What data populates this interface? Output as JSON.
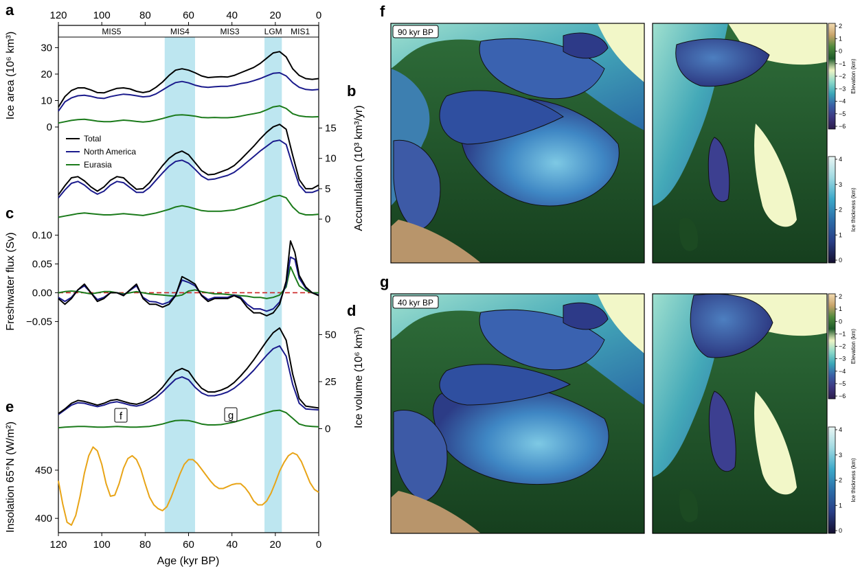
{
  "panel_letters": {
    "a": "a",
    "b": "b",
    "c": "c",
    "d": "d",
    "e": "e",
    "f": "f",
    "g": "g"
  },
  "top_axis": {
    "ticks": [
      "120",
      "100",
      "80",
      "60",
      "40",
      "20",
      "0"
    ]
  },
  "bottom_axis": {
    "ticks": [
      "120",
      "100",
      "80",
      "60",
      "40",
      "20",
      "0"
    ],
    "label": "Age (kyr BP)"
  },
  "stages": [
    {
      "label": "MIS5",
      "from": 130,
      "to": 71,
      "shaded": false
    },
    {
      "label": "MIS4",
      "from": 71,
      "to": 57,
      "shaded": true
    },
    {
      "label": "MIS3",
      "from": 57,
      "to": 25,
      "shaded": false
    },
    {
      "label": "LGM",
      "from": 25,
      "to": 17,
      "shaded": true
    },
    {
      "label": "MIS1",
      "from": 17,
      "to": 0,
      "shaded": false
    }
  ],
  "legend": [
    {
      "label": "Total",
      "color": "#000000"
    },
    {
      "label": "North America",
      "color": "#1a1a8c"
    },
    {
      "label": "Eurasia",
      "color": "#1a7a1a"
    }
  ],
  "insolation_color": "#e8a416",
  "zero_line_color": "#cc2222",
  "shade_color": "#bde6f0",
  "axes": {
    "a": {
      "ylabel": "Ice area (10⁶ km³)",
      "ticks": [
        "30",
        "20",
        "10",
        "0"
      ]
    },
    "b": {
      "ylabel": "Accumulation (10³ km³/yr)",
      "ticks": [
        "15",
        "10",
        "5",
        "0"
      ]
    },
    "c": {
      "ylabel": "Freshwater flux (Sv)",
      "ticks": [
        "0.10",
        "0.05",
        "0.00",
        "−0.05"
      ]
    },
    "d": {
      "ylabel": "Ice volume (10⁶ km³)",
      "ticks": [
        "50",
        "25",
        "0"
      ]
    },
    "e": {
      "ylabel": "Insolation 65°N (W/m²)",
      "ticks": [
        "450",
        "400"
      ]
    }
  },
  "markers": {
    "f": "f",
    "g": "g"
  },
  "maps": {
    "f": {
      "label": "90 kyr BP"
    },
    "g": {
      "label": "40 kyr BP"
    }
  },
  "colorbars": {
    "elevation": {
      "label": "Elevation (km)",
      "ticks": [
        "2",
        "1",
        "0",
        "−1",
        "−2",
        "−3",
        "−4",
        "−5",
        "−6"
      ],
      "colors": [
        "#f3dcb2",
        "#c8a36a",
        "#4f8a3d",
        "#1e5a2a",
        "#f0f5c4",
        "#8bd8c9",
        "#3aa6b8",
        "#3a5fa6",
        "#3d3780",
        "#2b1d4a"
      ]
    },
    "thickness": {
      "label": "Ice thickness (km)",
      "ticks": [
        "4",
        "3",
        "2",
        "1",
        "0"
      ],
      "colors": [
        "#e9f6f4",
        "#9fd9e1",
        "#3ba8c9",
        "#2b6ca8",
        "#283d85",
        "#140f2e"
      ]
    }
  },
  "chart_data": [
    {
      "type": "line",
      "panel": "a",
      "x": [
        120,
        117,
        114,
        111,
        108,
        105,
        102,
        99,
        96,
        93,
        90,
        87,
        84,
        81,
        78,
        75,
        72,
        69,
        66,
        63,
        60,
        57,
        54,
        51,
        48,
        45,
        42,
        39,
        36,
        33,
        30,
        27,
        24,
        21,
        18,
        15,
        12,
        9,
        6,
        3,
        0
      ],
      "series": [
        {
          "name": "Total",
          "values": [
            7.5,
            11.5,
            13.8,
            14.8,
            14.8,
            14.0,
            13.0,
            12.9,
            13.8,
            14.6,
            14.8,
            14.4,
            13.5,
            13.0,
            13.5,
            15.0,
            17.0,
            19.5,
            21.5,
            22.0,
            21.5,
            20.5,
            19.3,
            18.7,
            18.9,
            19.0,
            18.9,
            19.5,
            20.5,
            21.5,
            22.5,
            24.0,
            26.0,
            28.0,
            28.5,
            26.5,
            22.0,
            19.5,
            18.3,
            18.0,
            18.3
          ]
        },
        {
          "name": "North America",
          "values": [
            6.0,
            9.5,
            11.0,
            11.8,
            12.0,
            11.6,
            11.0,
            10.8,
            11.5,
            12.0,
            12.4,
            12.2,
            11.8,
            11.4,
            11.6,
            12.5,
            14.0,
            15.5,
            16.8,
            17.2,
            16.7,
            15.8,
            15.2,
            15.0,
            15.2,
            15.4,
            15.4,
            15.8,
            16.4,
            16.8,
            17.5,
            18.3,
            19.3,
            20.3,
            20.5,
            19.3,
            16.8,
            15.0,
            14.2,
            14.0,
            14.2
          ]
        },
        {
          "name": "Eurasia",
          "values": [
            1.5,
            2.0,
            2.5,
            2.8,
            2.9,
            2.6,
            2.2,
            2.0,
            2.0,
            2.3,
            2.6,
            2.4,
            2.1,
            1.9,
            2.1,
            2.6,
            3.2,
            3.9,
            4.5,
            4.6,
            4.4,
            4.1,
            3.6,
            3.5,
            3.6,
            3.5,
            3.5,
            3.7,
            4.1,
            4.6,
            5.0,
            5.5,
            6.5,
            7.6,
            8.0,
            7.0,
            5.0,
            4.2,
            3.9,
            3.8,
            3.9
          ]
        }
      ],
      "xlim": [
        120,
        0
      ],
      "ylim": [
        0,
        34
      ],
      "xlabel": "",
      "ylabel": "Ice area (10⁶ km³)"
    },
    {
      "type": "line",
      "panel": "b",
      "x": [
        120,
        117,
        114,
        111,
        108,
        105,
        102,
        99,
        96,
        93,
        90,
        87,
        84,
        81,
        78,
        75,
        72,
        69,
        66,
        63,
        60,
        57,
        54,
        51,
        48,
        45,
        42,
        39,
        36,
        33,
        30,
        27,
        24,
        21,
        18,
        15,
        12,
        9,
        6,
        3,
        0
      ],
      "series": [
        {
          "name": "Total",
          "values": [
            4.0,
            5.5,
            6.8,
            7.0,
            6.3,
            5.3,
            4.6,
            5.3,
            6.4,
            7.0,
            6.8,
            5.8,
            4.9,
            5.0,
            6.0,
            7.4,
            8.8,
            10.0,
            10.8,
            11.2,
            10.6,
            9.3,
            8.0,
            7.3,
            7.4,
            7.8,
            8.2,
            8.8,
            9.8,
            10.9,
            12.0,
            13.2,
            14.3,
            15.2,
            15.6,
            14.8,
            10.5,
            6.5,
            5.0,
            5.0,
            5.6
          ]
        },
        {
          "name": "North America",
          "values": [
            3.5,
            4.8,
            5.9,
            6.2,
            5.6,
            4.7,
            4.1,
            4.6,
            5.6,
            6.2,
            6.0,
            5.2,
            4.4,
            4.4,
            5.2,
            6.4,
            7.6,
            8.7,
            9.5,
            9.7,
            9.2,
            8.2,
            7.1,
            6.5,
            6.6,
            6.9,
            7.2,
            7.7,
            8.5,
            9.4,
            10.3,
            11.2,
            12.0,
            12.8,
            13.0,
            12.3,
            8.8,
            5.6,
            4.4,
            4.4,
            4.8
          ]
        },
        {
          "name": "Eurasia",
          "values": [
            0.3,
            0.5,
            0.7,
            0.9,
            1.0,
            0.9,
            0.8,
            0.7,
            0.7,
            0.8,
            0.9,
            0.8,
            0.7,
            0.6,
            0.8,
            1.0,
            1.3,
            1.6,
            2.0,
            2.2,
            2.0,
            1.7,
            1.4,
            1.3,
            1.3,
            1.3,
            1.4,
            1.5,
            1.8,
            2.1,
            2.4,
            2.8,
            3.2,
            3.7,
            3.9,
            3.5,
            2.0,
            1.0,
            0.7,
            0.7,
            0.8
          ]
        }
      ],
      "xlim": [
        120,
        0
      ],
      "ylim": [
        -1,
        18
      ],
      "xlabel": "",
      "ylabel": "Accumulation (10³ km³/yr)"
    },
    {
      "type": "line",
      "panel": "c",
      "x": [
        120,
        117,
        114,
        111,
        108,
        105,
        102,
        99,
        96,
        93,
        90,
        87,
        84,
        81,
        78,
        75,
        72,
        69,
        66,
        63,
        60,
        57,
        54,
        51,
        48,
        45,
        42,
        39,
        36,
        33,
        30,
        27,
        24,
        21,
        18,
        15,
        13,
        11,
        9,
        6,
        3,
        0
      ],
      "series": [
        {
          "name": "Total",
          "values": [
            -0.01,
            -0.02,
            -0.01,
            0.005,
            0.015,
            0.0,
            -0.015,
            -0.01,
            0.0,
            0.0,
            -0.005,
            0.005,
            0.015,
            -0.01,
            -0.02,
            -0.02,
            -0.025,
            -0.02,
            -0.005,
            0.028,
            0.022,
            0.015,
            -0.005,
            -0.015,
            -0.01,
            -0.01,
            -0.01,
            -0.005,
            -0.01,
            -0.025,
            -0.035,
            -0.035,
            -0.04,
            -0.035,
            -0.02,
            0.02,
            0.09,
            0.07,
            0.03,
            0.01,
            0.0,
            -0.005
          ]
        },
        {
          "name": "North America",
          "values": [
            -0.008,
            -0.015,
            -0.008,
            0.005,
            0.012,
            0.0,
            -0.012,
            -0.008,
            0.0,
            0.0,
            -0.004,
            0.004,
            0.012,
            -0.008,
            -0.015,
            -0.016,
            -0.02,
            -0.016,
            -0.004,
            0.022,
            0.018,
            0.012,
            -0.004,
            -0.012,
            -0.008,
            -0.008,
            -0.008,
            -0.004,
            -0.008,
            -0.02,
            -0.028,
            -0.028,
            -0.032,
            -0.028,
            -0.016,
            0.015,
            0.062,
            0.058,
            0.025,
            0.008,
            0.0,
            -0.004
          ]
        },
        {
          "name": "Eurasia",
          "values": [
            0.0,
            0.002,
            0.003,
            0.002,
            0.0,
            -0.002,
            0.0,
            0.002,
            0.002,
            0.0,
            -0.002,
            0.0,
            0.002,
            0.0,
            -0.002,
            -0.003,
            -0.004,
            -0.005,
            -0.006,
            -0.004,
            0.003,
            0.005,
            0.002,
            0.0,
            -0.002,
            -0.002,
            -0.003,
            -0.004,
            -0.005,
            -0.006,
            -0.008,
            -0.008,
            -0.01,
            -0.008,
            -0.004,
            0.01,
            0.045,
            0.028,
            0.012,
            0.004,
            0.0,
            0.0
          ]
        }
      ],
      "xlim": [
        120,
        0
      ],
      "ylim": [
        -0.065,
        0.115
      ],
      "xlabel": "",
      "ylabel": "Freshwater flux (Sv)"
    },
    {
      "type": "line",
      "panel": "d",
      "x": [
        120,
        117,
        114,
        111,
        108,
        105,
        102,
        99,
        96,
        93,
        90,
        87,
        84,
        81,
        78,
        75,
        72,
        69,
        66,
        63,
        60,
        57,
        54,
        51,
        48,
        45,
        42,
        39,
        36,
        33,
        30,
        27,
        24,
        21,
        18,
        15,
        12,
        9,
        6,
        3,
        0
      ],
      "series": [
        {
          "name": "Total",
          "values": [
            8.0,
            10.5,
            13.5,
            15.0,
            14.5,
            13.5,
            12.5,
            13.5,
            15.0,
            15.5,
            14.5,
            13.5,
            13.0,
            14.0,
            16.0,
            18.5,
            22.0,
            26.5,
            30.5,
            32.0,
            30.5,
            25.5,
            21.5,
            19.5,
            19.5,
            20.5,
            22.0,
            24.5,
            28.0,
            32.0,
            36.5,
            41.5,
            46.5,
            51.0,
            53.5,
            47.0,
            29.0,
            16.0,
            12.0,
            11.5,
            11.0
          ]
        },
        {
          "name": "North America",
          "values": [
            7.5,
            10.0,
            12.5,
            13.8,
            13.5,
            12.5,
            11.7,
            12.5,
            13.8,
            14.3,
            13.5,
            12.5,
            12.0,
            12.8,
            14.5,
            16.5,
            19.5,
            23.0,
            26.3,
            27.5,
            26.0,
            22.0,
            19.0,
            17.5,
            17.5,
            18.3,
            19.5,
            21.5,
            24.3,
            27.5,
            31.0,
            35.0,
            39.0,
            42.5,
            44.0,
            38.5,
            23.5,
            13.5,
            10.5,
            10.2,
            10.0
          ]
        },
        {
          "name": "Eurasia",
          "values": [
            0.5,
            0.8,
            1.0,
            1.2,
            1.2,
            1.0,
            0.8,
            0.8,
            1.0,
            1.2,
            1.0,
            0.8,
            0.8,
            1.0,
            1.2,
            1.8,
            2.5,
            3.5,
            4.3,
            4.5,
            4.3,
            3.5,
            2.5,
            2.0,
            2.0,
            2.2,
            2.8,
            3.5,
            4.5,
            5.5,
            6.5,
            7.5,
            8.5,
            9.5,
            9.8,
            8.5,
            5.5,
            2.5,
            1.5,
            1.2,
            1.0
          ]
        }
      ],
      "xlim": [
        120,
        0
      ],
      "ylim": [
        -2,
        60
      ],
      "xlabel": "",
      "ylabel": "Ice volume (10⁶ km³)"
    },
    {
      "type": "line",
      "panel": "e",
      "x": [
        120,
        118,
        116,
        114,
        112,
        110,
        108,
        106,
        104,
        102,
        100,
        98,
        96,
        94,
        92,
        90,
        88,
        86,
        84,
        82,
        80,
        78,
        76,
        74,
        72,
        70,
        68,
        66,
        64,
        62,
        60,
        58,
        56,
        54,
        52,
        50,
        48,
        46,
        44,
        42,
        40,
        38,
        36,
        34,
        32,
        30,
        28,
        26,
        24,
        22,
        20,
        18,
        16,
        14,
        12,
        10,
        8,
        6,
        4,
        2,
        0
      ],
      "series": [
        {
          "name": "Insolation",
          "values": [
            439,
            415,
            396,
            393,
            403,
            423,
            447,
            465,
            474,
            470,
            456,
            436,
            423,
            424,
            436,
            452,
            462,
            465,
            461,
            451,
            436,
            422,
            414,
            410,
            408,
            412,
            422,
            434,
            446,
            456,
            461,
            461,
            457,
            451,
            445,
            439,
            434,
            431,
            431,
            433,
            435,
            436,
            436,
            432,
            426,
            418,
            414,
            414,
            418,
            426,
            437,
            449,
            458,
            465,
            468,
            466,
            459,
            448,
            437,
            430,
            427
          ]
        }
      ],
      "xlim": [
        120,
        0
      ],
      "ylim": [
        388,
        482
      ],
      "xlabel": "Age (kyr BP)",
      "ylabel": "Insolation 65°N (W/m²)"
    }
  ]
}
